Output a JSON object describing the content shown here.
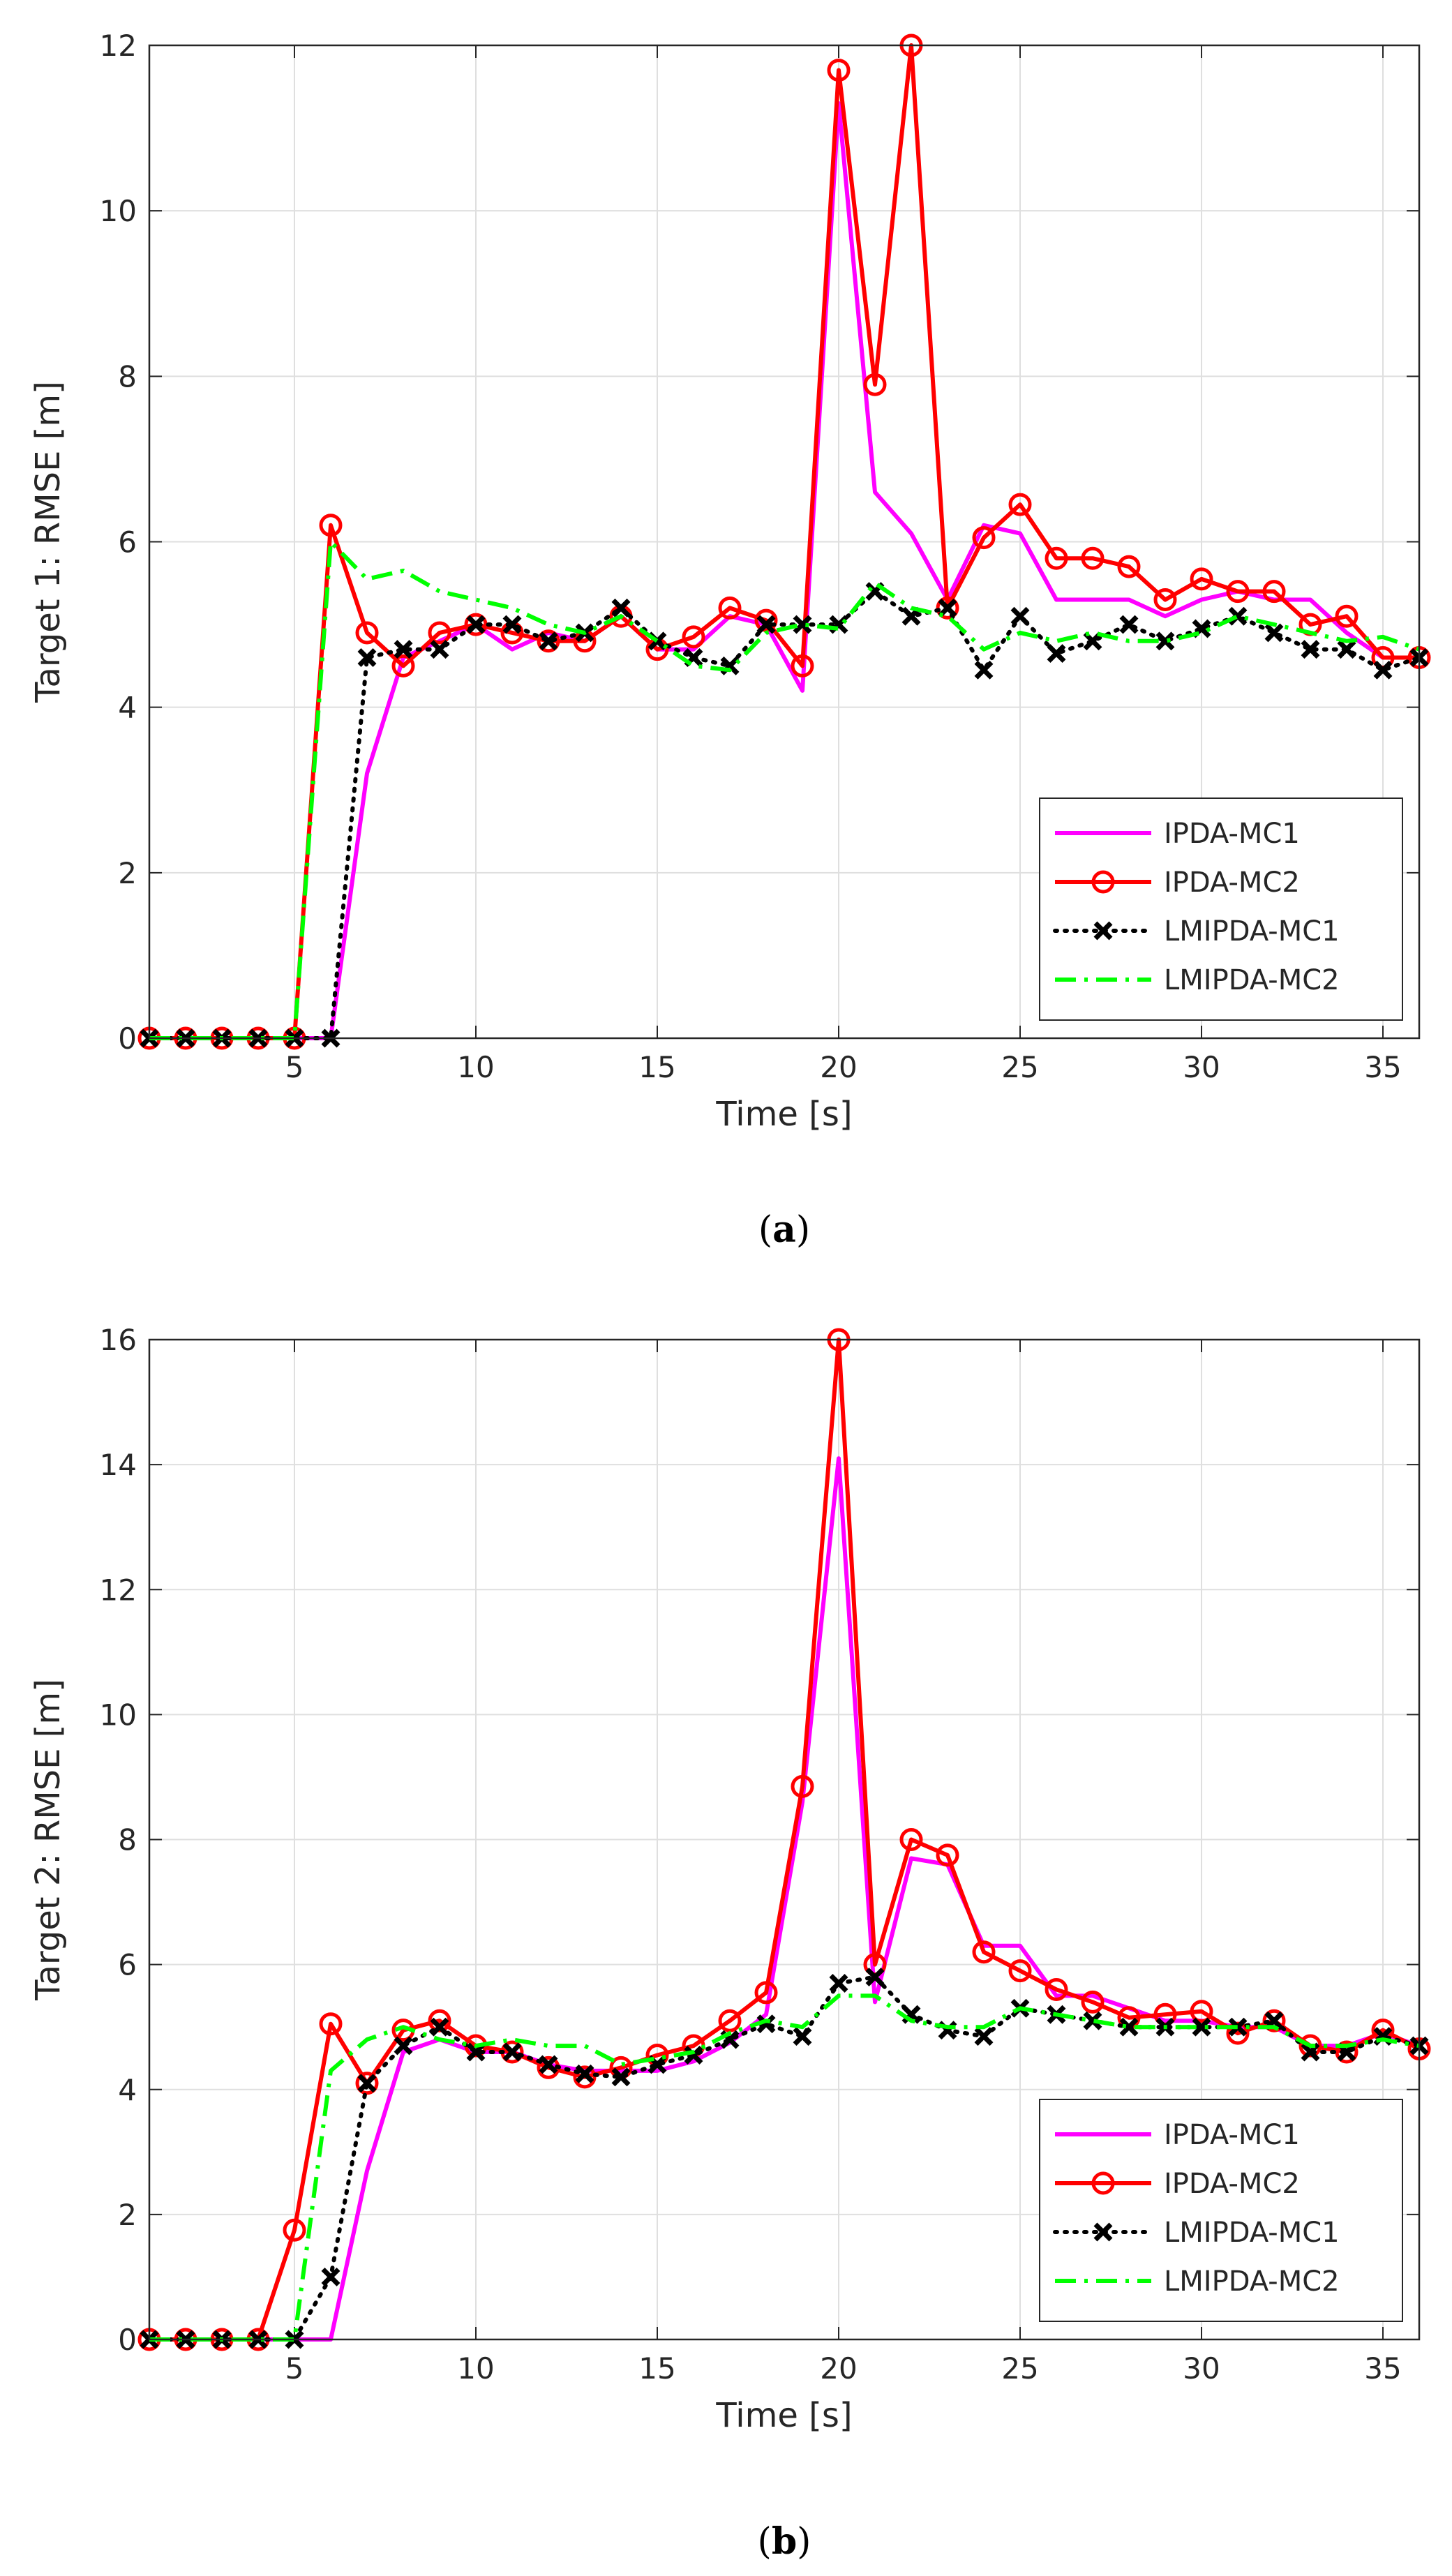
{
  "chart_data": [
    {
      "type": "line",
      "caption": "(a)",
      "caption_open": "(",
      "caption_letter": "a",
      "caption_close": ")",
      "xlabel": "Time [s]",
      "ylabel": "Target 1: RMSE [m]",
      "xlim": [
        1,
        36
      ],
      "ylim": [
        0,
        12
      ],
      "xticks": [
        5,
        10,
        15,
        20,
        25,
        30,
        35
      ],
      "yticks": [
        0,
        2,
        4,
        6,
        8,
        10,
        12
      ],
      "grid": true,
      "legend_position": "bottom-right",
      "x": [
        1,
        2,
        3,
        4,
        5,
        6,
        7,
        8,
        9,
        10,
        11,
        12,
        13,
        14,
        15,
        16,
        17,
        18,
        19,
        20,
        21,
        22,
        23,
        24,
        25,
        26,
        27,
        28,
        29,
        30,
        31,
        32,
        33,
        34,
        35,
        36
      ],
      "series": [
        {
          "name": "IPDA-MC1",
          "color": "#ff00ff",
          "dash": "solid",
          "marker": "none",
          "values": [
            0,
            0,
            0,
            0,
            0,
            0,
            3.2,
            4.6,
            4.8,
            5.0,
            4.7,
            4.9,
            4.8,
            5.1,
            4.7,
            4.7,
            5.1,
            5.0,
            4.2,
            11.3,
            6.6,
            6.1,
            5.3,
            6.2,
            6.1,
            5.3,
            5.3,
            5.3,
            5.1,
            5.3,
            5.4,
            5.3,
            5.3,
            4.9,
            4.6,
            4.6
          ]
        },
        {
          "name": "IPDA-MC2",
          "color": "#ff0000",
          "dash": "solid",
          "marker": "circle",
          "values": [
            0,
            0,
            0,
            0,
            0,
            6.2,
            4.9,
            4.5,
            4.9,
            5.0,
            4.9,
            4.8,
            4.8,
            5.1,
            4.7,
            4.85,
            5.2,
            5.05,
            4.5,
            11.7,
            7.9,
            12.0,
            5.2,
            6.05,
            6.45,
            5.8,
            5.8,
            5.7,
            5.3,
            5.55,
            5.4,
            5.4,
            5.0,
            5.1,
            4.6,
            4.6
          ]
        },
        {
          "name": "LMIPDA-MC1",
          "color": "#000000",
          "dash": "dotted",
          "marker": "x",
          "values": [
            0,
            0,
            0,
            0,
            0,
            0,
            4.6,
            4.7,
            4.7,
            5.0,
            5.0,
            4.8,
            4.9,
            5.2,
            4.8,
            4.6,
            4.5,
            5.0,
            5.0,
            5.0,
            5.4,
            5.1,
            5.2,
            4.45,
            5.1,
            4.65,
            4.8,
            5.0,
            4.8,
            4.95,
            5.1,
            4.9,
            4.7,
            4.7,
            4.45,
            4.6
          ]
        },
        {
          "name": "LMIPDA-MC2",
          "color": "#00ff00",
          "dash": "dashdot",
          "marker": "none",
          "values": [
            0,
            0,
            0,
            0,
            0,
            6.0,
            5.55,
            5.65,
            5.4,
            5.3,
            5.2,
            5.0,
            4.9,
            5.1,
            4.8,
            4.5,
            4.45,
            4.9,
            5.0,
            4.95,
            5.5,
            5.2,
            5.1,
            4.7,
            4.9,
            4.8,
            4.9,
            4.8,
            4.8,
            4.9,
            5.1,
            5.0,
            4.9,
            4.8,
            4.85,
            4.7
          ]
        }
      ]
    },
    {
      "type": "line",
      "caption": "(b)",
      "caption_open": "(",
      "caption_letter": "b",
      "caption_close": ")",
      "xlabel": "Time [s]",
      "ylabel": "Target 2: RMSE [m]",
      "xlim": [
        1,
        36
      ],
      "ylim": [
        0,
        16
      ],
      "xticks": [
        5,
        10,
        15,
        20,
        25,
        30,
        35
      ],
      "yticks": [
        0,
        2,
        4,
        6,
        8,
        10,
        12,
        14,
        16
      ],
      "grid": true,
      "legend_position": "bottom-right",
      "x": [
        1,
        2,
        3,
        4,
        5,
        6,
        7,
        8,
        9,
        10,
        11,
        12,
        13,
        14,
        15,
        16,
        17,
        18,
        19,
        20,
        21,
        22,
        23,
        24,
        25,
        26,
        27,
        28,
        29,
        30,
        31,
        32,
        33,
        34,
        35,
        36
      ],
      "series": [
        {
          "name": "IPDA-MC1",
          "color": "#ff00ff",
          "dash": "solid",
          "marker": "none",
          "values": [
            0,
            0,
            0,
            0,
            0,
            0,
            2.7,
            4.6,
            4.8,
            4.6,
            4.6,
            4.4,
            4.3,
            4.3,
            4.3,
            4.45,
            4.75,
            5.2,
            8.6,
            14.1,
            5.4,
            7.7,
            7.6,
            6.3,
            6.3,
            5.5,
            5.5,
            5.3,
            5.1,
            5.1,
            5.0,
            5.0,
            4.7,
            4.7,
            4.9,
            4.7
          ]
        },
        {
          "name": "IPDA-MC2",
          "color": "#ff0000",
          "dash": "solid",
          "marker": "circle",
          "values": [
            0,
            0,
            0,
            0,
            1.75,
            5.05,
            4.1,
            4.95,
            5.1,
            4.7,
            4.6,
            4.35,
            4.2,
            4.35,
            4.55,
            4.7,
            5.1,
            5.55,
            8.85,
            16.0,
            6.0,
            8.0,
            7.75,
            6.2,
            5.9,
            5.6,
            5.4,
            5.15,
            5.2,
            5.25,
            4.9,
            5.1,
            4.7,
            4.6,
            4.95,
            4.65
          ]
        },
        {
          "name": "LMIPDA-MC1",
          "color": "#000000",
          "dash": "dotted",
          "marker": "x",
          "values": [
            0,
            0,
            0,
            0,
            0,
            1.0,
            4.1,
            4.7,
            5.0,
            4.6,
            4.6,
            4.4,
            4.25,
            4.2,
            4.4,
            4.55,
            4.8,
            5.05,
            4.85,
            5.7,
            5.8,
            5.2,
            4.95,
            4.85,
            5.3,
            5.2,
            5.1,
            5.0,
            5.0,
            5.0,
            5.0,
            5.1,
            4.6,
            4.6,
            4.85,
            4.7
          ]
        },
        {
          "name": "LMIPDA-MC2",
          "color": "#00ff00",
          "dash": "dashdot",
          "marker": "none",
          "values": [
            0,
            0,
            0,
            0,
            0,
            4.3,
            4.8,
            5.0,
            4.8,
            4.7,
            4.8,
            4.7,
            4.7,
            4.4,
            4.5,
            4.6,
            4.9,
            5.1,
            5.0,
            5.5,
            5.5,
            5.1,
            5.0,
            5.0,
            5.3,
            5.2,
            5.1,
            5.0,
            5.0,
            5.0,
            5.0,
            5.0,
            4.7,
            4.7,
            4.8,
            4.7
          ]
        }
      ]
    }
  ]
}
